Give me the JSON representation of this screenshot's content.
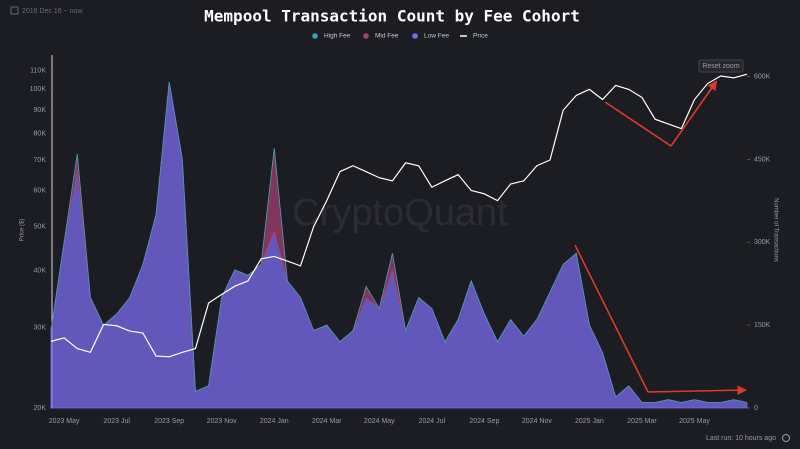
{
  "date_range": "2016 Dec 16 ~ now",
  "reset_zoom": "Reset zoom",
  "last_run": "Last run: 10 hours ago",
  "watermark": "CryptoQuant",
  "chart_data": {
    "type": "area",
    "title": "Mempool Transaction Count by Fee Cohort",
    "ylabel": "Price ($)",
    "y2label": "Number of Transactions",
    "legend": "top",
    "log_scale": true,
    "categories": [
      null,
      "2023 May",
      null,
      null,
      null,
      "2023 Jul",
      null,
      null,
      null,
      "2023 Sep",
      null,
      null,
      null,
      "2023 Nov",
      null,
      null,
      null,
      "2024 Jan",
      null,
      null,
      null,
      "2024 Mar",
      null,
      null,
      null,
      "2024 May",
      null,
      null,
      null,
      "2024 Jul",
      null,
      null,
      null,
      "2024 Sep",
      null,
      null,
      null,
      "2024 Nov",
      null,
      null,
      null,
      "2025 Jan",
      null,
      null,
      null,
      "2025 Mar",
      null,
      null,
      null,
      "2025 May",
      null,
      null,
      null,
      null
    ],
    "series": [
      {
        "name": "High Fee",
        "color": "#3fa0b4",
        "axis": "y2",
        "values": [
          0,
          0,
          0,
          0,
          0,
          0,
          0,
          0,
          0,
          0,
          0,
          0,
          0,
          0,
          0,
          0,
          0,
          0,
          0,
          0,
          0,
          0,
          0,
          0,
          0,
          0,
          0,
          0,
          0,
          0,
          0,
          0,
          0,
          0,
          0,
          0,
          0,
          0,
          0,
          0,
          0,
          0,
          0,
          0,
          0,
          0,
          0,
          0,
          0,
          0,
          0,
          0,
          0,
          0
        ]
      },
      {
        "name": "Mid Fee",
        "color": "#a3406c",
        "axis": "y2",
        "values": [
          0,
          0,
          30000,
          0,
          0,
          0,
          0,
          0,
          0,
          0,
          0,
          0,
          0,
          0,
          0,
          0,
          0,
          150000,
          0,
          0,
          0,
          0,
          0,
          0,
          20000,
          0,
          30000,
          0,
          0,
          0,
          0,
          0,
          0,
          0,
          0,
          0,
          0,
          0,
          0,
          0,
          0,
          0,
          0,
          0,
          0,
          0,
          0,
          0,
          0,
          0,
          0,
          0,
          0,
          0
        ]
      },
      {
        "name": "Low Fee",
        "color": "#7a6cf0",
        "axis": "y2",
        "values": [
          140000,
          300000,
          430000,
          200000,
          150000,
          170000,
          200000,
          260000,
          350000,
          590000,
          450000,
          30000,
          40000,
          200000,
          250000,
          240000,
          260000,
          320000,
          230000,
          200000,
          140000,
          150000,
          120000,
          140000,
          200000,
          180000,
          250000,
          140000,
          200000,
          180000,
          120000,
          160000,
          230000,
          170000,
          120000,
          160000,
          130000,
          160000,
          210000,
          260000,
          280000,
          150000,
          100000,
          20000,
          40000,
          10000,
          10000,
          15000,
          10000,
          15000,
          10000,
          10000,
          15000,
          10000
        ]
      },
      {
        "name": "Price",
        "color": "#ffffff",
        "type": "line",
        "values": [
          28000,
          28500,
          27000,
          26500,
          30500,
          30300,
          29500,
          29200,
          26000,
          25900,
          26500,
          27000,
          34000,
          35500,
          37000,
          38000,
          42500,
          43000,
          42000,
          41000,
          50000,
          57000,
          66000,
          68000,
          66000,
          64000,
          63000,
          69000,
          68000,
          61000,
          63000,
          65000,
          60000,
          59000,
          57000,
          62000,
          63000,
          68000,
          70000,
          90000,
          97000,
          100000,
          95000,
          102000,
          100000,
          96000,
          86000,
          84000,
          82000,
          95000,
          103000,
          107000,
          106000,
          108000
        ]
      }
    ],
    "ylim": [
      20000,
      116000
    ],
    "yticks": [
      {
        "value": 20000,
        "label": "20K"
      },
      {
        "value": 30000,
        "label": "30K"
      },
      {
        "value": 40000,
        "label": "40K"
      },
      {
        "value": 50000,
        "label": "50K"
      },
      {
        "value": 60000,
        "label": "60K"
      },
      {
        "value": 70000,
        "label": "70K"
      },
      {
        "value": 80000,
        "label": "80K"
      },
      {
        "value": 90000,
        "label": "90K"
      },
      {
        "value": 100000,
        "label": "100K"
      },
      {
        "value": 110000,
        "label": "110K"
      }
    ],
    "y2lim": [
      0,
      630000
    ],
    "y2ticks": [
      0,
      {
        "value": 150000,
        "label": "150K"
      },
      {
        "value": 300000,
        "label": "300K"
      },
      {
        "value": 450000,
        "label": "450K"
      },
      {
        "value": 600000,
        "label": "600K"
      }
    ]
  }
}
